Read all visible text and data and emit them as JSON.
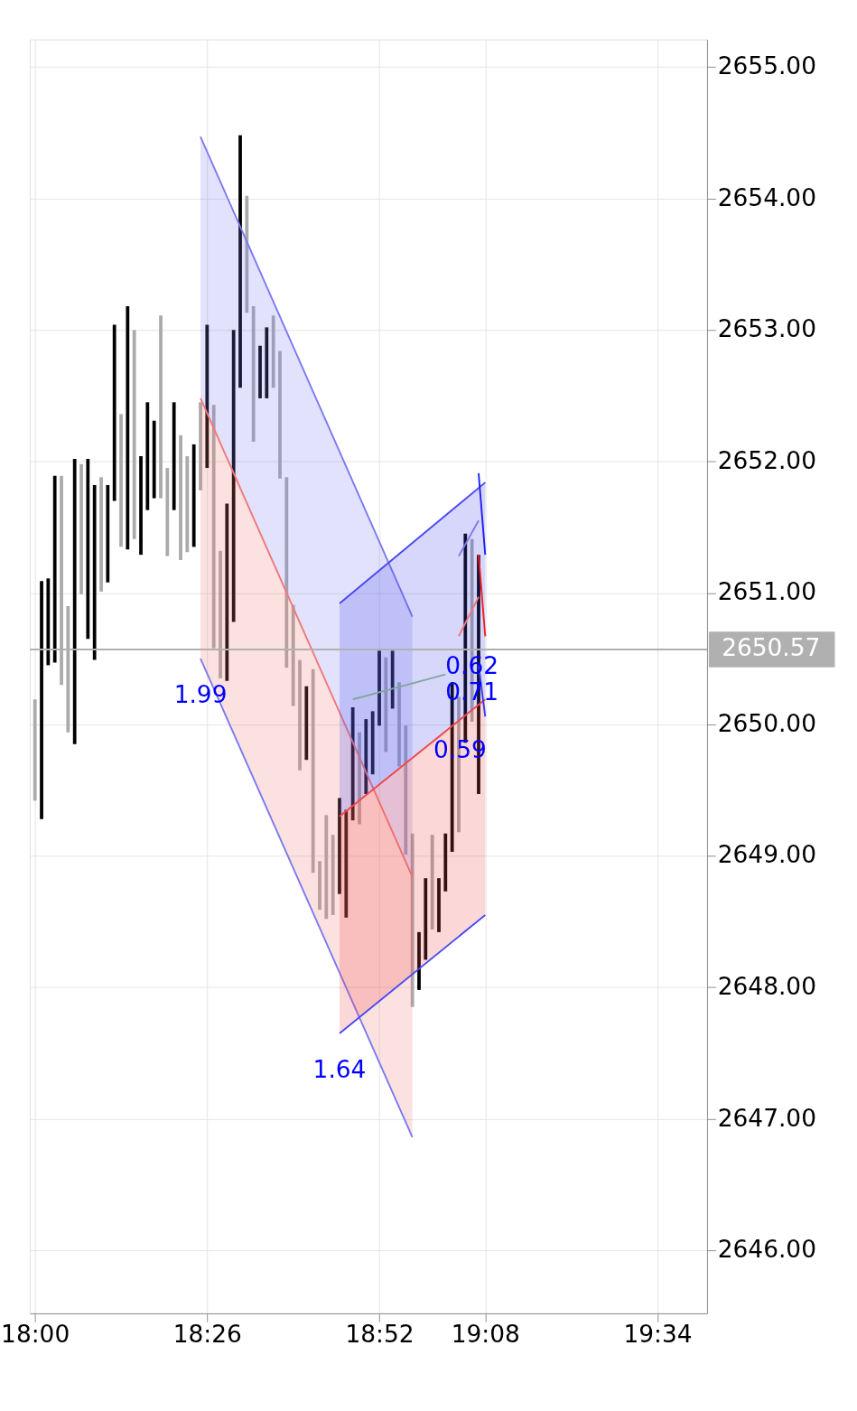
{
  "chart_data": {
    "type": "bar",
    "x": [
      18,
      18.0167,
      18.0333,
      18.05,
      18.0667,
      18.0833,
      18.1,
      18.1167,
      18.1333,
      18.15,
      18.1667,
      18.1833,
      18.2,
      18.2167,
      18.2333,
      18.25,
      18.2667,
      18.2833,
      18.3,
      18.3167,
      18.3333,
      18.35,
      18.3667,
      18.3833,
      18.4,
      18.4167,
      18.4333,
      18.45,
      18.4667,
      18.4833,
      18.5,
      18.5167,
      18.5333,
      18.55,
      18.5667,
      18.5833,
      18.6,
      18.6167,
      18.6333,
      18.65,
      18.6667,
      18.6833,
      18.7,
      18.7167,
      18.7333,
      18.75,
      18.7667,
      18.7833,
      18.8,
      18.8167,
      18.8333,
      18.85,
      18.8667,
      18.8833,
      18.9,
      18.9167,
      18.9333,
      18.95,
      18.9667,
      18.9833,
      19,
      19.0167,
      19.0333,
      19.05,
      19.0667,
      19.0833,
      19.1,
      19.1167
    ],
    "series": [
      {
        "base": [
          2649.42,
          2649.28,
          2650.45,
          2650.47,
          2650.3,
          2649.94,
          2649.85,
          2650.99,
          2650.65,
          2650.49,
          2651.01,
          2651.08,
          2651.7,
          2651.35,
          2651.33,
          2651.41,
          2651.29,
          2651.63,
          2651.72,
          2651.72,
          2651.28,
          2651.63,
          2651.25,
          2651.31,
          2651.35,
          2651.78,
          2651.95,
          2650.58,
          2650.35,
          2650.33,
          2650.78,
          2652.56,
          2653.13,
          2652.15,
          2652.48,
          2652.48,
          2652.56,
          2651.87,
          2650.43,
          2650.14,
          2649.65,
          2649.73,
          2648.87,
          2648.59,
          2648.52,
          2648.55,
          2648.71,
          2648.53,
          2649.27,
          2649.24,
          2649.47,
          2649.62,
          2649.99,
          2649.79,
          2650.12,
          2649.68,
          2649.01,
          2647.85,
          2647.98,
          2648.21,
          2648.44,
          2648.42,
          2648.73,
          2649.03,
          2649.18,
          2649.86,
          2650.02,
          2649.47
        ],
        "values": [
          0.77,
          1.81,
          0.66,
          1.42,
          1.59,
          0.96,
          2.17,
          0.99,
          1.37,
          1.33,
          0.87,
          0.74,
          1.34,
          1.01,
          1.85,
          1.59,
          0.75,
          0.82,
          0.59,
          1.39,
          0.67,
          0.82,
          0.95,
          0.73,
          0.78,
          0.67,
          1.09,
          1.85,
          0.97,
          1.35,
          2.22,
          1.92,
          0.89,
          1.03,
          0.4,
          0.54,
          0.55,
          0.97,
          1.45,
          0.77,
          0.84,
          0.56,
          1.55,
          0.37,
          0.79,
          0.61,
          0.73,
          0.82,
          0.86,
          0.7,
          0.57,
          0.48,
          0.57,
          0.72,
          0.44,
          0.64,
          0.98,
          1.32,
          0.44,
          0.62,
          0.72,
          0.41,
          0.44,
          1.29,
          1.03,
          1.59,
          1.39,
          1.82
        ],
        "colors": [
          "#aaaaaa",
          "#000000",
          "#000000",
          "#000000",
          "#aaaaaa",
          "#aaaaaa",
          "#000000",
          "#aaaaaa",
          "#000000",
          "#000000",
          "#aaaaaa",
          "#000000",
          "#000000",
          "#aaaaaa",
          "#000000",
          "#aaaaaa",
          "#000000",
          "#000000",
          "#000000",
          "#aaaaaa",
          "#aaaaaa",
          "#000000",
          "#aaaaaa",
          "#aaaaaa",
          "#000000",
          "#aaaaaa",
          "#000000",
          "#aaaaaa",
          "#aaaaaa",
          "#000000",
          "#000000",
          "#000000",
          "#aaaaaa",
          "#aaaaaa",
          "#000000",
          "#000000",
          "#aaaaaa",
          "#aaaaaa",
          "#aaaaaa",
          "#aaaaaa",
          "#aaaaaa",
          "#000000",
          "#aaaaaa",
          "#aaaaaa",
          "#aaaaaa",
          "#aaaaaa",
          "#000000",
          "#000000",
          "#000000",
          "#aaaaaa",
          "#000000",
          "#000000",
          "#000000",
          "#aaaaaa",
          "#000000",
          "#aaaaaa",
          "#aaaaaa",
          "#aaaaaa",
          "#000000",
          "#000000",
          "#aaaaaa",
          "#000000",
          "#000000",
          "#000000",
          "#aaaaaa",
          "#000000",
          "#aaaaaa",
          "#000000"
        ]
      },
      {
        "type": "line",
        "color": "#7a7af2",
        "x": [
          18.4167,
          18.95
        ],
        "values": [
          2654.47,
          2650.82
        ],
        "upper": [
          2654.47,
          2650.82
        ],
        "lower": [
          2652.48,
          2648.84
        ]
      },
      {
        "type": "line",
        "color": "#f07878",
        "x": [
          18.4167,
          18.95
        ],
        "values": [
          2652.48,
          2648.84
        ],
        "upper": [
          2652.48,
          2648.84
        ],
        "lower": [
          2650.5,
          2646.86
        ]
      },
      {
        "type": "line",
        "color": "#7a7af2",
        "x": [
          18.4167,
          18.95
        ],
        "values": [
          2650.5,
          2646.86
        ]
      },
      {
        "type": "line",
        "color": "#4848f0",
        "x": [
          18.7667,
          19.1333
        ],
        "values": [
          2650.92,
          2651.84
        ],
        "upper": [
          2650.92,
          2651.84
        ],
        "lower": [
          2649.3,
          2650.19
        ]
      },
      {
        "type": "line",
        "color": "#f04848",
        "x": [
          18.7667,
          19.1333
        ],
        "values": [
          2649.3,
          2650.19
        ],
        "upper": [
          2649.3,
          2650.19
        ],
        "lower": [
          2647.65,
          2648.55
        ]
      },
      {
        "type": "line",
        "color": "#4848f0",
        "x": [
          18.7667,
          19.1333
        ],
        "values": [
          2647.65,
          2648.55
        ]
      },
      {
        "type": "line",
        "color": "#7fa89c",
        "x": [
          18.8,
          19.0333
        ],
        "values": [
          2650.19,
          2650.38
        ]
      },
      {
        "type": "line",
        "color": "#7a7af2",
        "x": [
          19.0667,
          19.1167
        ],
        "values": [
          2651.28,
          2651.55
        ]
      },
      {
        "type": "line",
        "color": "#f07878",
        "x": [
          19.0667,
          19.1167
        ],
        "values": [
          2650.67,
          2650.97
        ]
      },
      {
        "type": "line",
        "color": "#1f1ff0",
        "x": [
          19.1167,
          19.1333
        ],
        "values": [
          2651.91,
          2651.29
        ]
      },
      {
        "type": "line",
        "color": "#f01f1f",
        "x": [
          19.1167,
          19.1333
        ],
        "values": [
          2651.29,
          2650.67
        ]
      },
      {
        "type": "line",
        "color": "#3a3af0",
        "x": [
          19.1167,
          19.1333
        ],
        "values": [
          2650.45,
          2650.06
        ]
      }
    ],
    "xlim": [
      17.9871,
      19.6917
    ],
    "ylim": [
      2645.52,
      2655.21
    ],
    "xticks": [
      {
        "value": 18,
        "label": "18:00"
      },
      {
        "value": 18.4333,
        "label": "18:26"
      },
      {
        "value": 18.8667,
        "label": "18:52"
      },
      {
        "value": 19.1333,
        "label": "19:08"
      },
      {
        "value": 19.5667,
        "label": "19:34"
      }
    ],
    "yticks": [
      {
        "value": 2646,
        "label": "2646.00"
      },
      {
        "value": 2647,
        "label": "2647.00"
      },
      {
        "value": 2648,
        "label": "2648.00"
      },
      {
        "value": 2649,
        "label": "2649.00"
      },
      {
        "value": 2650,
        "label": "2650.00"
      },
      {
        "value": 2651,
        "label": "2651.00"
      },
      {
        "value": 2652,
        "label": "2652.00"
      },
      {
        "value": 2653,
        "label": "2653.00"
      },
      {
        "value": 2654,
        "label": "2654.00"
      },
      {
        "value": 2655,
        "label": "2655.00"
      }
    ],
    "ref_lines": [
      {
        "axis": "y",
        "value": 2650.57,
        "label": "2650.57",
        "color": "#b0b0b0"
      }
    ],
    "annotations": [
      {
        "text": "1.99",
        "x": 18.4167,
        "y": 2650.5
      },
      {
        "text": "1.64",
        "x": 18.7667,
        "y": 2647.65
      },
      {
        "text": "0.59",
        "x": 19.07,
        "y": 2650.08
      },
      {
        "text": "0.62",
        "x": 19.1,
        "y": 2650.72
      },
      {
        "text": "0.71",
        "x": 19.1,
        "y": 2650.52
      }
    ],
    "grid": true
  }
}
